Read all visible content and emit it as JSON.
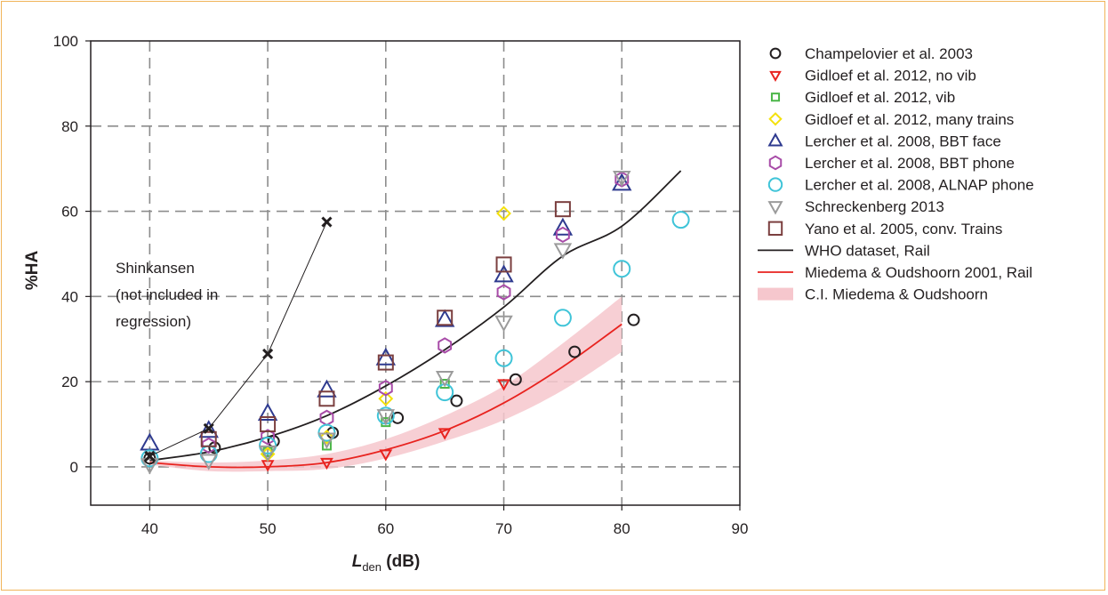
{
  "chart_data": {
    "type": "scatter",
    "xlabel_main": "L",
    "xlabel_sub": "den",
    "xlabel_unit": " (dB)",
    "ylabel": "%HA",
    "xlim": [
      35,
      90
    ],
    "ylim": [
      -9,
      100
    ],
    "x_ticks": [
      40,
      50,
      60,
      70,
      80,
      90
    ],
    "y_ticks": [
      0,
      20,
      40,
      60,
      80,
      100
    ],
    "grid": "dashed",
    "legend_position": "right",
    "annotation_lines": [
      "Shinkansen",
      "(not included in",
      "regression)"
    ],
    "series": [
      {
        "name": "Champelovier et al. 2003",
        "marker": "circle",
        "color": "#231f20",
        "size": 6,
        "x": [
          40,
          45.5,
          50.5,
          55.5,
          61,
          66,
          71,
          76,
          81
        ],
        "y": [
          2,
          4.5,
          6,
          8,
          11.5,
          15.5,
          20.5,
          27,
          34.5
        ]
      },
      {
        "name": "Gidloef et al. 2012, no vib",
        "marker": "triangle-down",
        "color": "#e8231f",
        "size": 6,
        "x": [
          50,
          55,
          60,
          65,
          70
        ],
        "y": [
          0.5,
          1,
          3,
          8,
          19.5
        ]
      },
      {
        "name": "Gidloef et al. 2012, vib",
        "marker": "square",
        "color": "#4bb648",
        "size": 4.5,
        "x": [
          50,
          55,
          60,
          65
        ],
        "y": [
          3.5,
          5,
          10.5,
          19.5
        ]
      },
      {
        "name": "Gidloef et al. 2012, many trains",
        "marker": "diamond",
        "color": "#f4e10b",
        "size": 7,
        "x": [
          50,
          55,
          60,
          70
        ],
        "y": [
          3,
          7,
          16,
          59.5
        ]
      },
      {
        "name": "Lercher et al. 2008, BBT face",
        "marker": "triangle-up",
        "color": "#2e3a8f",
        "size": 10,
        "x": [
          40,
          45,
          50,
          55,
          60,
          65,
          70,
          75,
          80
        ],
        "y": [
          5.5,
          8.5,
          12.5,
          18,
          25.5,
          34.5,
          45,
          56,
          66.5
        ]
      },
      {
        "name": "Lercher et al. 2008, BBT phone",
        "marker": "hexagon",
        "color": "#a84ca8",
        "size": 8,
        "x": [
          45,
          50,
          55,
          60,
          65,
          70,
          75,
          80
        ],
        "y": [
          5,
          7,
          11.5,
          18.5,
          28.5,
          41,
          54.5,
          67.5
        ]
      },
      {
        "name": "Lercher et al. 2008, ALNAP phone",
        "marker": "circle",
        "color": "#3fc4d8",
        "size": 9,
        "x": [
          40,
          45,
          50,
          55,
          60,
          65,
          70,
          75,
          80,
          85
        ],
        "y": [
          2,
          3,
          5,
          8,
          12,
          17.5,
          25.5,
          35,
          46.5,
          58
        ]
      },
      {
        "name": "Schreckenberg 2013",
        "marker": "triangle-down",
        "color": "#9b9b9b",
        "size": 9,
        "x": [
          40,
          45,
          50,
          55,
          60,
          65,
          70,
          75,
          80
        ],
        "y": [
          0.5,
          1.5,
          3.5,
          6.5,
          12,
          21,
          34,
          51,
          68
        ]
      },
      {
        "name": "Yano et al. 2005, conv. Trains",
        "marker": "square",
        "color": "#7b3f3f",
        "size": 8,
        "x": [
          45,
          50,
          55,
          60,
          65,
          70,
          75
        ],
        "y": [
          6.5,
          10,
          16,
          24.5,
          35,
          47.5,
          60.5
        ]
      },
      {
        "name": "Shinkansen",
        "marker": "x",
        "color": "#231f20",
        "size": 5,
        "x": [
          40,
          45,
          50,
          55
        ],
        "y": [
          2.5,
          9,
          26.5,
          57.5
        ]
      }
    ],
    "curves": [
      {
        "name": "WHO dataset, Rail",
        "color": "#231f20",
        "x": [
          40,
          45,
          50,
          55,
          60,
          65,
          70,
          75,
          80,
          85
        ],
        "y": [
          1.5,
          3.5,
          7,
          12,
          19,
          27.5,
          37.5,
          49.5,
          56.5,
          69.5
        ]
      },
      {
        "name": "Miedema & Oudshoorn 2001, Rail",
        "color": "#e8231f",
        "x": [
          40,
          45,
          50,
          55,
          60,
          65,
          70,
          75,
          80
        ],
        "y": [
          1,
          0,
          0,
          1,
          4,
          8.5,
          15,
          23.5,
          33.5
        ]
      }
    ],
    "ci_band": {
      "name": "C.I. Miedema & Oudshoorn",
      "color": "#f6c7cd",
      "x": [
        40,
        45,
        50,
        55,
        60,
        65,
        70,
        75,
        80
      ],
      "lower": [
        0.5,
        -1,
        -1,
        -0.5,
        2,
        6,
        11,
        18,
        27
      ],
      "upper": [
        1.5,
        1,
        1.5,
        3,
        6.5,
        12,
        19,
        29,
        40
      ]
    }
  }
}
